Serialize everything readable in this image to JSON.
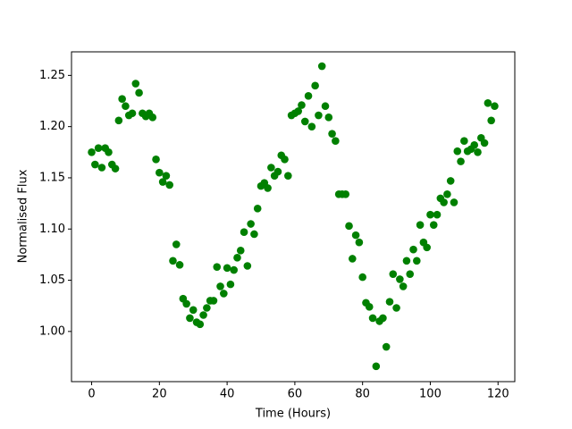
{
  "chart_data": {
    "type": "scatter",
    "color": "#008000",
    "x_label": "Time (Hours)",
    "y_label": "Normalised Flux",
    "x": [
      0,
      1,
      2,
      3,
      4,
      5,
      6,
      7,
      8,
      9,
      10,
      11,
      12,
      13,
      14,
      15,
      16,
      17,
      18,
      19,
      20,
      21,
      22,
      23,
      24,
      25,
      26,
      27,
      28,
      29,
      30,
      31,
      32,
      33,
      34,
      35,
      36,
      37,
      38,
      39,
      40,
      41,
      42,
      43,
      44,
      45,
      46,
      47,
      48,
      49,
      50,
      51,
      52,
      53,
      54,
      55,
      56,
      57,
      58,
      59,
      60,
      61,
      62,
      63,
      64,
      65,
      66,
      67,
      68,
      69,
      70,
      71,
      72,
      73,
      74,
      75,
      76,
      77,
      78,
      79,
      80,
      81,
      82,
      83,
      84,
      85,
      86,
      87,
      88,
      89,
      90,
      91,
      92,
      93,
      94,
      95,
      96,
      97,
      98,
      99,
      100,
      101,
      102,
      103,
      104,
      105,
      106,
      107,
      108,
      109,
      110,
      111,
      112,
      113,
      114,
      115,
      116,
      117,
      118,
      119
    ],
    "values": [
      1.175,
      1.163,
      1.179,
      1.16,
      1.179,
      1.175,
      1.163,
      1.159,
      1.206,
      1.227,
      1.22,
      1.211,
      1.213,
      1.242,
      1.233,
      1.213,
      1.21,
      1.213,
      1.209,
      1.168,
      1.155,
      1.146,
      1.152,
      1.143,
      1.069,
      1.085,
      1.065,
      1.032,
      1.027,
      1.013,
      1.021,
      1.009,
      1.007,
      1.016,
      1.023,
      1.03,
      1.03,
      1.063,
      1.044,
      1.037,
      1.062,
      1.046,
      1.06,
      1.072,
      1.079,
      1.097,
      1.064,
      1.105,
      1.095,
      1.12,
      1.142,
      1.145,
      1.14,
      1.16,
      1.152,
      1.156,
      1.172,
      1.168,
      1.152,
      1.211,
      1.213,
      1.215,
      1.221,
      1.205,
      1.23,
      1.2,
      1.24,
      1.211,
      1.259,
      1.22,
      1.209,
      1.193,
      1.186,
      1.134,
      1.134,
      1.134,
      1.103,
      1.071,
      1.094,
      1.087,
      1.053,
      1.028,
      1.024,
      1.013,
      0.966,
      1.01,
      1.013,
      0.985,
      1.029,
      1.056,
      1.023,
      1.051,
      1.044,
      1.069,
      1.056,
      1.08,
      1.069,
      1.104,
      1.087,
      1.082,
      1.114,
      1.104,
      1.114,
      1.13,
      1.126,
      1.134,
      1.147,
      1.126,
      1.176,
      1.166,
      1.186,
      1.176,
      1.178,
      1.182,
      1.175,
      1.189,
      1.184,
      1.223,
      1.206,
      1.22
    ],
    "xlim": [
      -5.95,
      124.95
    ],
    "xticks": [
      0,
      20,
      40,
      60,
      80,
      100,
      120
    ],
    "ylim": [
      0.951,
      1.273
    ],
    "yticks": [
      {
        "value": 1.0,
        "label": "1.00"
      },
      {
        "value": 1.05,
        "label": "1.05"
      },
      {
        "value": 1.1,
        "label": "1.10"
      },
      {
        "value": 1.15,
        "label": "1.15"
      },
      {
        "value": 1.2,
        "label": "1.20"
      },
      {
        "value": 1.25,
        "label": "1.25"
      }
    ]
  }
}
